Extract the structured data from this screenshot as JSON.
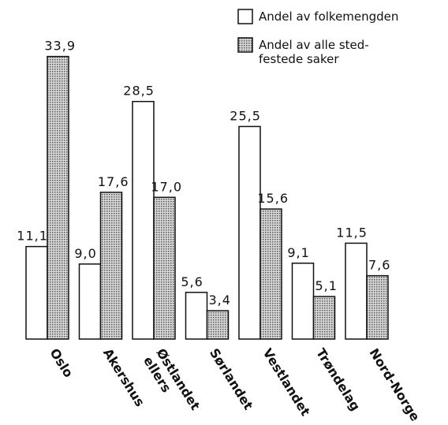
{
  "chart_data": {
    "type": "bar",
    "categories": [
      "Oslo",
      "Akershus",
      "Østlandet\nellers",
      "Sørlandet",
      "Vestlandet",
      "Trøndelag",
      "Nord-Norge"
    ],
    "series": [
      {
        "name": "Andel av folkemengden",
        "color": "#ffffff",
        "values": [
          11.1,
          9.0,
          28.5,
          5.6,
          25.5,
          9.1,
          11.5
        ],
        "value_labels": [
          "11,1",
          "9,0",
          "28,5",
          "5,6",
          "25,5",
          "9,1",
          "11,5"
        ]
      },
      {
        "name": "Andel av alle sted-\nfestede saker",
        "color": "#b8b8b8",
        "values": [
          33.9,
          17.6,
          17.0,
          3.4,
          15.6,
          5.1,
          7.6
        ],
        "value_labels": [
          "33,9",
          "17,6",
          "17,0",
          "3,4",
          "15,6",
          "5,1",
          "7,6"
        ]
      }
    ],
    "ylim": [
      0,
      35
    ],
    "legend": "upper right"
  }
}
